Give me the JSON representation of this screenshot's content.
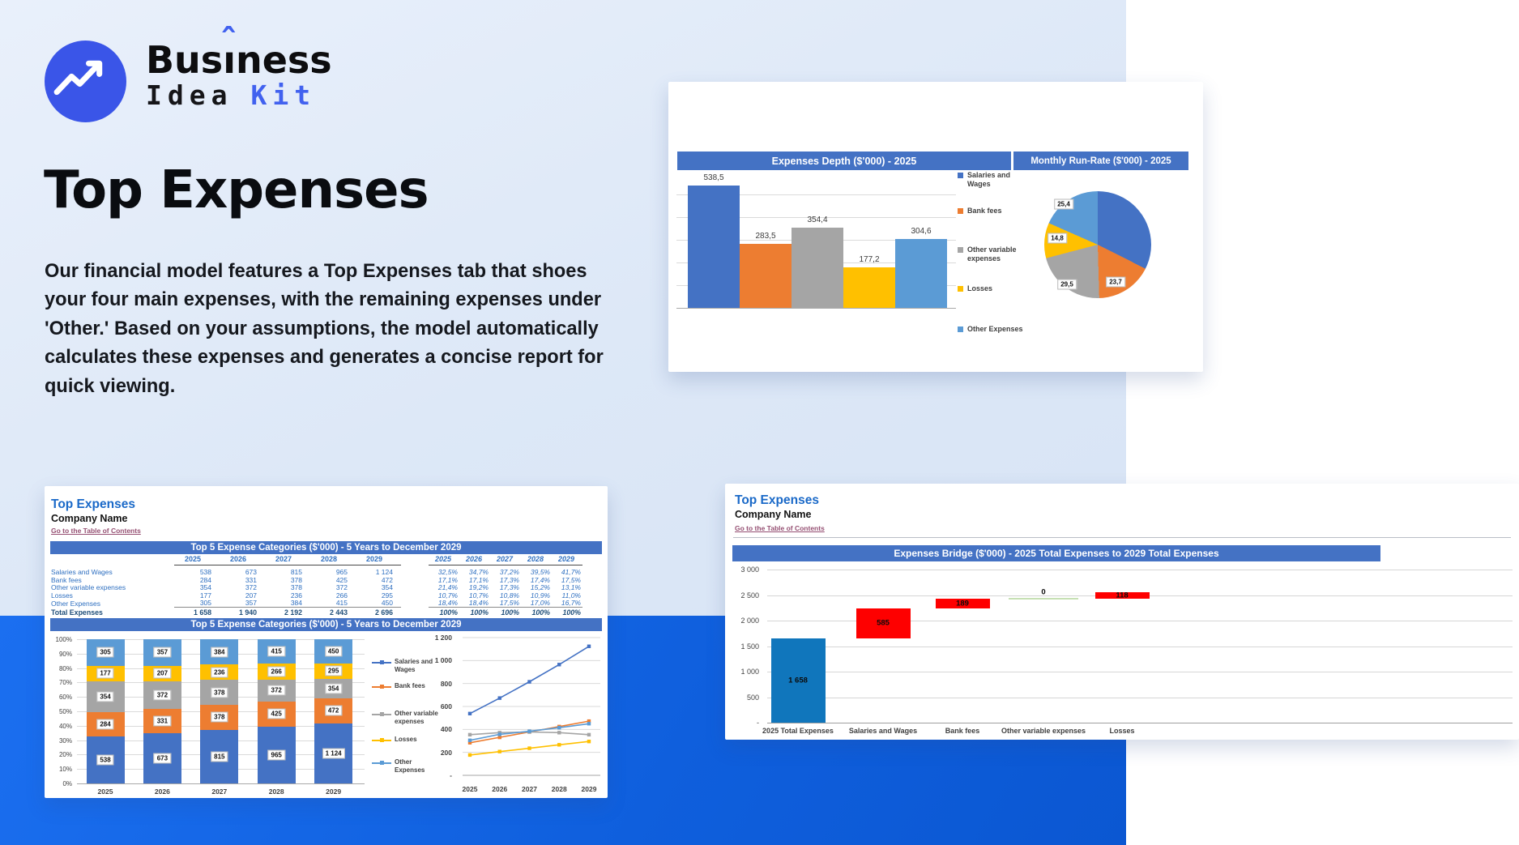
{
  "logo": {
    "pre": "Bus",
    "i": "ı",
    "caret": "ˆ",
    "post": "ness",
    "line2_black": "Idea",
    "line2_blue": "Kit",
    "circle_color": "#3a55e8",
    "accent_blue": "#4161ef"
  },
  "hero": {
    "title": "Top Expenses",
    "paragraph": "Our financial model features a Top Expenses tab that shoes your four main expenses, with the remaining expenses under 'Other.' Based on your assumptions, the model automatically calculates these expenses and generates a concise report for quick viewing."
  },
  "palette": {
    "page_bg": "#dde8f7",
    "band_blue": "#1166e8",
    "header_bar": "#4472C4",
    "series": {
      "salaries": "#4472C4",
      "bank": "#ED7D31",
      "othervar": "#A5A5A5",
      "losses": "#FFC000",
      "otherexp": "#5B9BD5"
    },
    "waterfall_total": "#1076BC",
    "waterfall_increase": "#FE0000",
    "waterfall_zero": "#C6E0B4",
    "link": "#954F72",
    "panel_heading": "#1a69c8",
    "table_text": "#2e6fc0",
    "table_total": "#1f4e79"
  },
  "panel_top_right": {
    "bar_title": "Expenses Depth ($'000) - 2025",
    "pie_title": "Monthly Run-Rate ($'000) - 2025"
  },
  "panel_bottom_left": {
    "heading": "Top Expenses",
    "company": "Company Name",
    "link": "Go to the Table of Contents",
    "table_title": "Top 5 Expense Categories ($'000) - 5 Years to December 2029",
    "chart_title": "Top 5 Expense Categories ($'000) - 5 Years to December 2029"
  },
  "panel_bottom_right": {
    "heading": "Top Expenses",
    "company": "Company Name",
    "link": "Go to the Table of Contents",
    "chart_title": "Expenses Bridge ($'000) - 2025 Total Expenses to 2029 Total Expenses"
  },
  "chart_data": [
    {
      "id": "expenses_depth",
      "type": "bar",
      "title": "Expenses Depth ($'000) - 2025",
      "categories": [
        "Salaries and Wages",
        "Bank fees",
        "Other variable expenses",
        "Losses",
        "Other Expenses"
      ],
      "values": [
        538.5,
        283.5,
        354.4,
        177.2,
        304.6
      ],
      "labels": [
        "538,5",
        "283,5",
        "354,4",
        "177,2",
        "304,6"
      ],
      "colors": [
        "#4472C4",
        "#ED7D31",
        "#A5A5A5",
        "#FFC000",
        "#5B9BD5"
      ],
      "ylim": [
        0,
        600
      ],
      "grid": true,
      "legend_position": "right"
    },
    {
      "id": "monthly_run_rate",
      "type": "pie",
      "title": "Monthly Run-Rate ($'000) - 2025",
      "colors": [
        "#4472C4",
        "#ED7D31",
        "#A5A5A5",
        "#FFC000",
        "#5B9BD5"
      ],
      "slices": [
        {
          "name": "Salaries and Wages",
          "value": 44.8,
          "label": ""
        },
        {
          "name": "Bank fees",
          "value": 23.7,
          "label": "23,7"
        },
        {
          "name": "Other variable expenses",
          "value": 29.5,
          "label": "29,5"
        },
        {
          "name": "Losses",
          "value": 14.8,
          "label": "14,8"
        },
        {
          "name": "Other Expenses",
          "value": 25.4,
          "label": "25,4"
        }
      ]
    },
    {
      "id": "top5_table",
      "type": "table",
      "title": "Top 5 Expense Categories ($'000) - 5 Years to December 2029",
      "years": [
        "2025",
        "2026",
        "2027",
        "2028",
        "2029"
      ],
      "rows": [
        {
          "label": "Salaries and Wages",
          "values": [
            "538",
            "673",
            "815",
            "965",
            "1 124"
          ],
          "pcts": [
            "32,5%",
            "34,7%",
            "37,2%",
            "39,5%",
            "41,7%"
          ]
        },
        {
          "label": "Bank fees",
          "values": [
            "284",
            "331",
            "378",
            "425",
            "472"
          ],
          "pcts": [
            "17,1%",
            "17,1%",
            "17,3%",
            "17,4%",
            "17,5%"
          ]
        },
        {
          "label": "Other variable expenses",
          "values": [
            "354",
            "372",
            "378",
            "372",
            "354"
          ],
          "pcts": [
            "21,4%",
            "19,2%",
            "17,3%",
            "15,2%",
            "13,1%"
          ]
        },
        {
          "label": "Losses",
          "values": [
            "177",
            "207",
            "236",
            "266",
            "295"
          ],
          "pcts": [
            "10,7%",
            "10,7%",
            "10,8%",
            "10,9%",
            "11,0%"
          ]
        },
        {
          "label": "Other Expenses",
          "values": [
            "305",
            "357",
            "384",
            "415",
            "450"
          ],
          "pcts": [
            "18,4%",
            "18,4%",
            "17,5%",
            "17,0%",
            "16,7%"
          ]
        }
      ],
      "total": {
        "label": "Total Expenses",
        "values": [
          "1 658",
          "1 940",
          "2 192",
          "2 443",
          "2 696"
        ],
        "pcts": [
          "100%",
          "100%",
          "100%",
          "100%",
          "100%"
        ]
      }
    },
    {
      "id": "top5_stacked",
      "type": "stacked-bar-100",
      "title": "Top 5 Expense Categories ($'000) - 5 Years to December 2029",
      "categories": [
        "2025",
        "2026",
        "2027",
        "2028",
        "2029"
      ],
      "y_ticks": [
        "100%",
        "90%",
        "80%",
        "70%",
        "60%",
        "50%",
        "40%",
        "30%",
        "20%",
        "10%",
        "0%"
      ],
      "series": [
        {
          "name": "Salaries and Wages",
          "color": "#4472C4",
          "values": [
            538,
            673,
            815,
            965,
            1124
          ],
          "labels": [
            "538",
            "673",
            "815",
            "965",
            "1 124"
          ]
        },
        {
          "name": "Bank fees",
          "color": "#ED7D31",
          "values": [
            284,
            331,
            378,
            425,
            472
          ],
          "labels": [
            "284",
            "331",
            "378",
            "425",
            "472"
          ]
        },
        {
          "name": "Other variable expenses",
          "color": "#A5A5A5",
          "values": [
            354,
            372,
            378,
            372,
            354
          ],
          "labels": [
            "354",
            "372",
            "378",
            "372",
            "354"
          ]
        },
        {
          "name": "Losses",
          "color": "#FFC000",
          "values": [
            177,
            207,
            236,
            266,
            295
          ],
          "labels": [
            "177",
            "207",
            "236",
            "266",
            "295"
          ]
        },
        {
          "name": "Other Expenses",
          "color": "#5B9BD5",
          "values": [
            305,
            357,
            384,
            415,
            450
          ],
          "labels": [
            "305",
            "357",
            "384",
            "415",
            "450"
          ]
        }
      ]
    },
    {
      "id": "top5_lines",
      "type": "line",
      "x": [
        "2025",
        "2026",
        "2027",
        "2028",
        "2029"
      ],
      "y_ticks": [
        "1 200",
        "1 000",
        "800",
        "600",
        "400",
        "200",
        "-"
      ],
      "ylim": [
        0,
        1200
      ],
      "series": [
        {
          "name": "Salaries and Wages",
          "color": "#4472C4",
          "values": [
            538,
            673,
            815,
            965,
            1124
          ]
        },
        {
          "name": "Bank fees",
          "color": "#ED7D31",
          "values": [
            284,
            331,
            378,
            425,
            472
          ]
        },
        {
          "name": "Other variable expenses",
          "color": "#A5A5A5",
          "values": [
            354,
            372,
            378,
            372,
            354
          ]
        },
        {
          "name": "Losses",
          "color": "#FFC000",
          "values": [
            177,
            207,
            236,
            266,
            295
          ]
        },
        {
          "name": "Other Expenses",
          "color": "#5B9BD5",
          "values": [
            305,
            357,
            384,
            415,
            450
          ]
        }
      ]
    },
    {
      "id": "expenses_bridge",
      "type": "waterfall",
      "title": "Expenses Bridge ($'000) - 2025 Total Expenses to 2029 Total Expenses",
      "y_ticks": [
        "3 000",
        "2 500",
        "2 000",
        "1 500",
        "1 000",
        "500",
        "-"
      ],
      "ylim": [
        0,
        3000
      ],
      "categories": [
        "2025 Total Expenses",
        "Salaries and Wages",
        "Bank fees",
        "Other variable expenses",
        "Losses"
      ],
      "bars": [
        {
          "label": "1 658",
          "start": 0,
          "end": 1658,
          "kind": "total"
        },
        {
          "label": "585",
          "start": 1658,
          "end": 2243,
          "kind": "increase"
        },
        {
          "label": "189",
          "start": 2243,
          "end": 2432,
          "kind": "increase"
        },
        {
          "label": "0",
          "start": 2432,
          "end": 2432,
          "kind": "zero"
        },
        {
          "label": "118",
          "start": 2432,
          "end": 2550,
          "kind": "increase"
        }
      ]
    }
  ]
}
